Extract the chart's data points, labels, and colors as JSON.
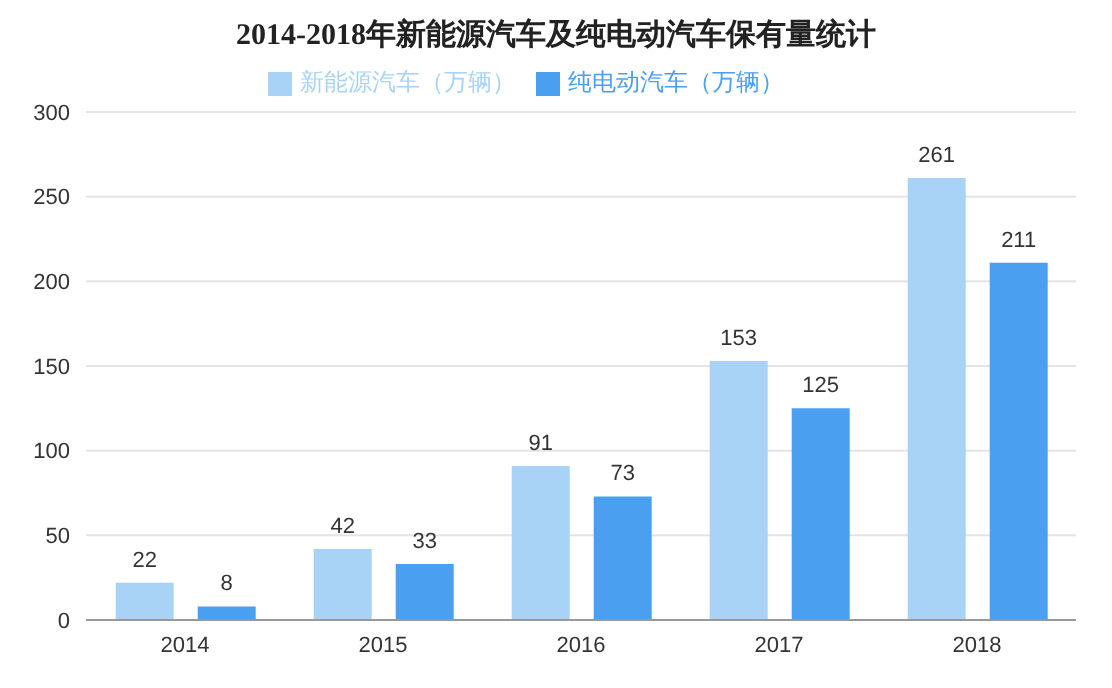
{
  "chart_data": {
    "type": "bar",
    "title": "2014-2018年新能源汽车及纯电动汽车保有量统计",
    "categories": [
      "2014",
      "2015",
      "2016",
      "2017",
      "2018"
    ],
    "series": [
      {
        "name": "新能源汽车（万辆）",
        "color": "#a8d3f7",
        "values": [
          22,
          42,
          91,
          153,
          261
        ]
      },
      {
        "name": "纯电动汽车（万辆）",
        "color": "#4a9ff0",
        "values": [
          8,
          33,
          73,
          125,
          211
        ]
      }
    ],
    "ylim": [
      0,
      300
    ],
    "yticks": [
      0,
      50,
      100,
      150,
      200,
      250,
      300
    ],
    "grid": "y",
    "legend": "top",
    "data_labels": true
  }
}
